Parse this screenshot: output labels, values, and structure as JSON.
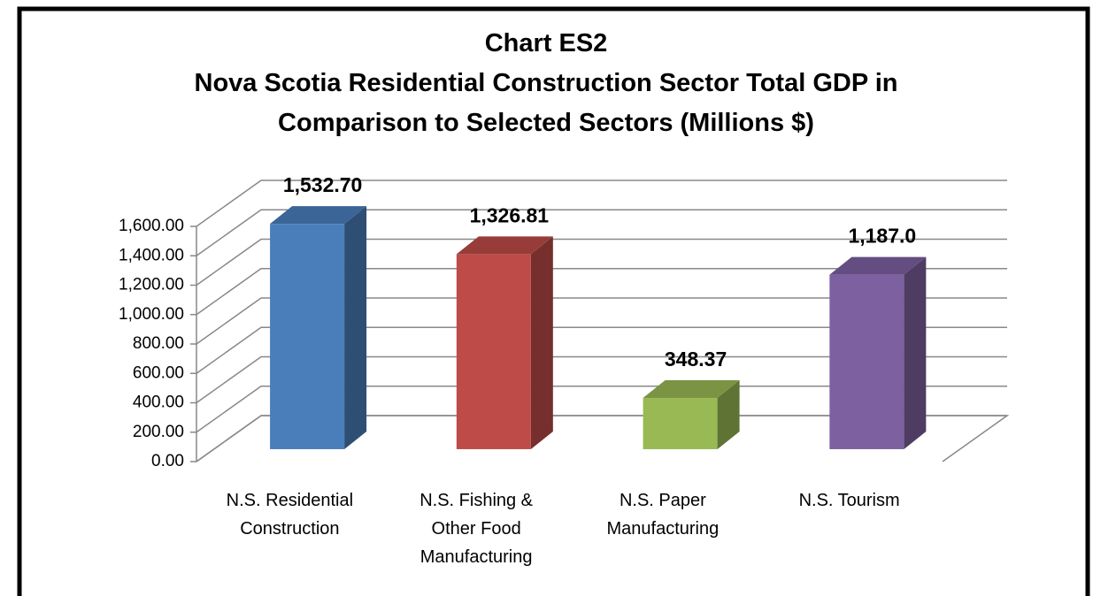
{
  "chart_data": {
    "type": "bar3d",
    "title": [
      "Chart ES2",
      "Nova Scotia Residential Construction Sector Total GDP in",
      "Comparison to Selected Sectors (Millions $)"
    ],
    "categories": [
      [
        "N.S. Residential",
        "Construction"
      ],
      [
        "N.S. Fishing &",
        "Other Food",
        "Manufacturing"
      ],
      [
        "N.S. Paper",
        "Manufacturing"
      ],
      [
        "N.S. Tourism"
      ]
    ],
    "values": [
      1532.7,
      1326.81,
      348.37,
      1187.0
    ],
    "value_labels": [
      "1,532.70",
      "1,326.81",
      "348.37",
      "1,187.0"
    ],
    "colors": [
      "#4a7ebb",
      "#be4b48",
      "#98b954",
      "#7d60a0"
    ],
    "ylim": [
      0,
      1600
    ],
    "yticks": [
      {
        "value": 0,
        "label": "0.00"
      },
      {
        "value": 200,
        "label": "200.00"
      },
      {
        "value": 400,
        "label": "400.00"
      },
      {
        "value": 600,
        "label": "600.00"
      },
      {
        "value": 800,
        "label": "800.00"
      },
      {
        "value": 1000,
        "label": "1,000.00"
      },
      {
        "value": 1200,
        "label": "1,200.00"
      },
      {
        "value": 1400,
        "label": "1,400.00"
      },
      {
        "value": 1600,
        "label": "1,600.00"
      }
    ],
    "grid": true
  }
}
